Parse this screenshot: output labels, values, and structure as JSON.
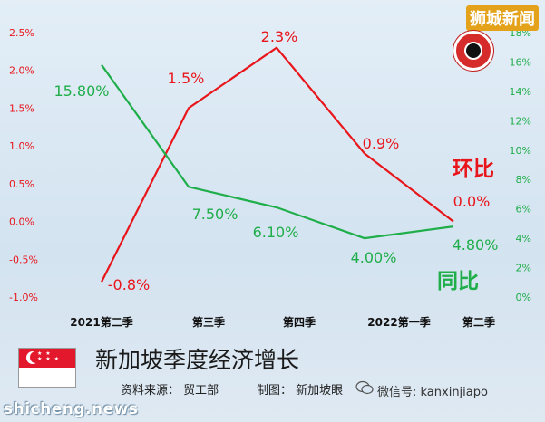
{
  "chart_data": {
    "type": "line",
    "categories": [
      "2021第二季",
      "第三季",
      "第四季",
      "2022第一季",
      "第二季"
    ],
    "series": [
      {
        "name": "环比",
        "axis": "left",
        "color": "#e8151b",
        "values": [
          -0.8,
          1.5,
          2.3,
          0.9,
          0.0
        ],
        "labels": [
          "-0.8%",
          "1.5%",
          "2.3%",
          "0.9%",
          "0.0%"
        ]
      },
      {
        "name": "同比",
        "axis": "right",
        "color": "#1fae4a",
        "values": [
          15.8,
          7.5,
          6.1,
          4.0,
          4.8
        ],
        "labels": [
          "15.80%",
          "7.50%",
          "6.10%",
          "4.00%",
          "4.80%"
        ]
      }
    ],
    "y_left": {
      "range": [
        -1.0,
        2.5
      ],
      "ticks": [
        "2.5%",
        "2.0%",
        "1.5%",
        "1.0%",
        "0.5%",
        "0.0%",
        "-0.5%",
        "-1.0%"
      ],
      "color": "#e8151b"
    },
    "y_right": {
      "range": [
        0,
        18
      ],
      "ticks": [
        "18%",
        "16%",
        "14%",
        "12%",
        "10%",
        "8%",
        "6%",
        "4%",
        "2%",
        "0%"
      ],
      "color": "#1fae4a"
    },
    "grid": false
  },
  "brand": {
    "name": "狮城新闻"
  },
  "title": "新加坡季度经济增长",
  "source": "资料来源：   贸工部",
  "credit": "制图：   新加坡眼",
  "wechat": "微信号: kanxinjiapo",
  "footer_brand": "shicheng.news"
}
